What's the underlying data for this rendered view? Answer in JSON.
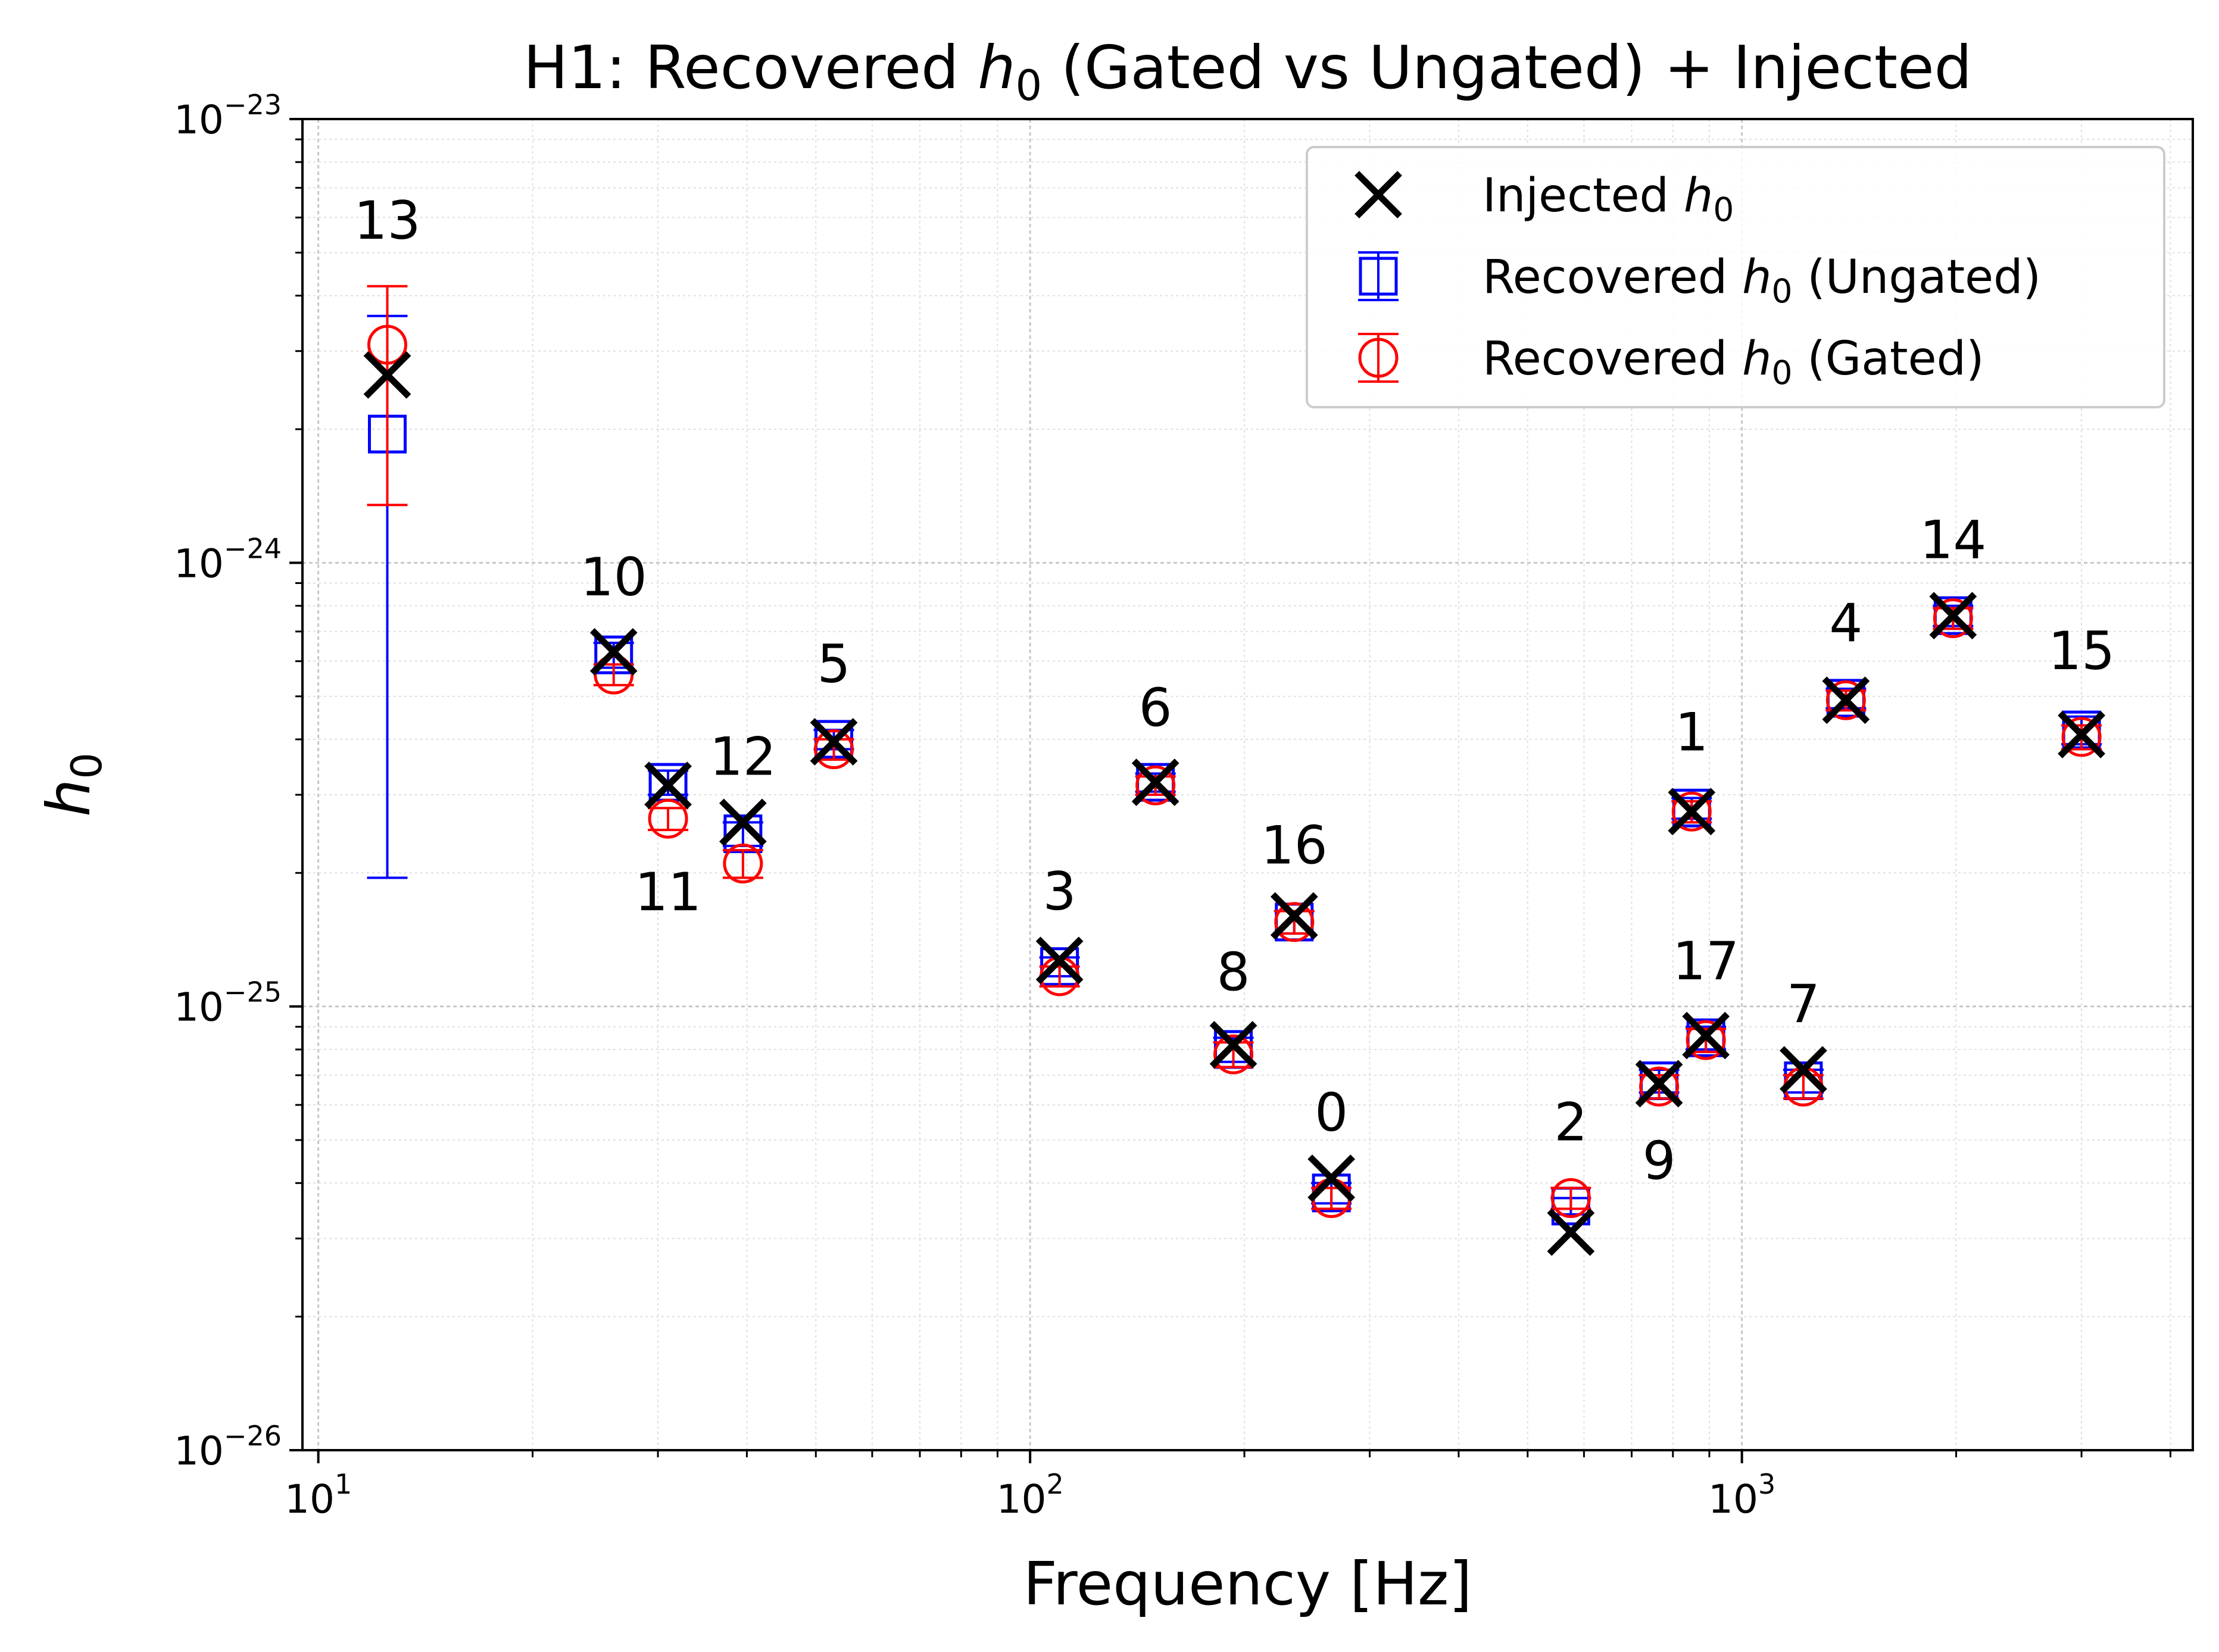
{
  "chart_data": {
    "type": "scatter",
    "title": "H1: Recovered h0 (Gated vs Ungated) + Injected",
    "title_parts": {
      "prefix": "H1: Recovered ",
      "sym": "h",
      "sub": "0",
      "suffix": " (Gated vs Ungated) + Injected"
    },
    "xlabel": "Frequency [Hz]",
    "ylabel": {
      "sym": "h",
      "sub": "0"
    },
    "xscale": "log",
    "yscale": "log",
    "xlim": [
      9.5,
      4300
    ],
    "ylim": [
      1e-26,
      1e-23
    ],
    "grid": true,
    "legend_position": "top-right",
    "x_ticks": [
      {
        "value": 10,
        "base": "10",
        "exp": "1"
      },
      {
        "value": 100,
        "base": "10",
        "exp": "2"
      },
      {
        "value": 1000,
        "base": "10",
        "exp": "3"
      }
    ],
    "y_ticks": [
      {
        "value": 1e-26,
        "base": "10",
        "exp": "−26"
      },
      {
        "value": 1e-25,
        "base": "10",
        "exp": "−25"
      },
      {
        "value": 1e-24,
        "base": "10",
        "exp": "−24"
      },
      {
        "value": 1e-23,
        "base": "10",
        "exp": "−23"
      }
    ],
    "legend": [
      {
        "key": "injected",
        "text_prefix": "Injected ",
        "sym": "h",
        "sub": "0",
        "text_suffix": ""
      },
      {
        "key": "ungated",
        "text_prefix": "Recovered ",
        "sym": "h",
        "sub": "0",
        "text_suffix": " (Ungated)"
      },
      {
        "key": "gated",
        "text_prefix": "Recovered ",
        "sym": "h",
        "sub": "0",
        "text_suffix": " (Gated)"
      }
    ],
    "colors": {
      "injected": "#000000",
      "ungated": "#0000ff",
      "gated": "#ff0000"
    },
    "points": [
      {
        "label": "0",
        "freq": 265,
        "injected": 4.1e-26,
        "ungated": 3.8e-26,
        "ungated_err": [
          3.6e-26,
          4e-26
        ],
        "gated": 3.7e-26,
        "gated_err": [
          3.5e-26,
          3.9e-26
        ],
        "label_side": "above"
      },
      {
        "label": "1",
        "freq": 850,
        "injected": 2.75e-25,
        "ungated": 2.8e-25,
        "ungated_err": [
          2.65e-25,
          2.95e-25
        ],
        "gated": 2.75e-25,
        "gated_err": [
          2.6e-25,
          2.9e-25
        ],
        "label_side": "above"
      },
      {
        "label": "2",
        "freq": 575,
        "injected": 3.1e-26,
        "ungated": 3.55e-26,
        "ungated_err": [
          3.4e-26,
          3.7e-26
        ],
        "gated": 3.7e-26,
        "gated_err": [
          3.5e-26,
          3.9e-26
        ],
        "label_side": "above"
      },
      {
        "label": "3",
        "freq": 110,
        "injected": 1.27e-25,
        "ungated": 1.23e-25,
        "ungated_err": [
          1.17e-25,
          1.29e-25
        ],
        "gated": 1.17e-25,
        "gated_err": [
          1.11e-25,
          1.23e-25
        ],
        "label_side": "above"
      },
      {
        "label": "4",
        "freq": 1400,
        "injected": 4.9e-25,
        "ungated": 4.95e-25,
        "ungated_err": [
          4.7e-25,
          5.2e-25
        ],
        "gated": 4.9e-25,
        "gated_err": [
          4.65e-25,
          5.15e-25
        ],
        "label_side": "above"
      },
      {
        "label": "5",
        "freq": 53,
        "injected": 3.95e-25,
        "ungated": 4e-25,
        "ungated_err": [
          3.8e-25,
          4.2e-25
        ],
        "gated": 3.8e-25,
        "gated_err": [
          3.6e-25,
          4e-25
        ],
        "label_side": "above"
      },
      {
        "label": "6",
        "freq": 150,
        "injected": 3.2e-25,
        "ungated": 3.2e-25,
        "ungated_err": [
          3.05e-25,
          3.35e-25
        ],
        "gated": 3.15e-25,
        "gated_err": [
          3e-25,
          3.3e-25
        ],
        "label_side": "above"
      },
      {
        "label": "7",
        "freq": 1220,
        "injected": 7.2e-26,
        "ungated": 6.8e-26,
        "ungated_err": [
          6.4e-26,
          7.2e-26
        ],
        "gated": 6.6e-26,
        "gated_err": [
          6.2e-26,
          7e-26
        ],
        "label_side": "above"
      },
      {
        "label": "8",
        "freq": 193,
        "injected": 8.2e-26,
        "ungated": 8e-26,
        "ungated_err": [
          7.5e-26,
          8.5e-26
        ],
        "gated": 7.8e-26,
        "gated_err": [
          7.3e-26,
          8.3e-26
        ],
        "label_side": "above"
      },
      {
        "label": "9",
        "freq": 765,
        "injected": 6.7e-26,
        "ungated": 6.8e-26,
        "ungated_err": [
          6.4e-26,
          7.2e-26
        ],
        "gated": 6.6e-26,
        "gated_err": [
          6.2e-26,
          7e-26
        ],
        "label_side": "below"
      },
      {
        "label": "10",
        "freq": 26,
        "injected": 6.3e-25,
        "ungated": 6.2e-25,
        "ungated_err": [
          5.8e-25,
          6.6e-25
        ],
        "gated": 5.6e-25,
        "gated_err": [
          5.3e-25,
          5.9e-25
        ],
        "label_side": "above"
      },
      {
        "label": "11",
        "freq": 31,
        "injected": 3.15e-25,
        "ungated": 3.2e-25,
        "ungated_err": [
          3e-25,
          3.4e-25
        ],
        "gated": 2.65e-25,
        "gated_err": [
          2.5e-25,
          2.8e-25
        ],
        "label_side": "below"
      },
      {
        "label": "12",
        "freq": 39.5,
        "injected": 2.6e-25,
        "ungated": 2.45e-25,
        "ungated_err": [
          2.3e-25,
          2.6e-25
        ],
        "gated": 2.1e-25,
        "gated_err": [
          1.95e-25,
          2.25e-25
        ],
        "label_side": "above"
      },
      {
        "label": "13",
        "freq": 12.5,
        "injected": 2.65e-24,
        "ungated": 1.95e-24,
        "ungated_err": [
          1.95e-25,
          3.6e-24
        ],
        "gated": 3.1e-24,
        "gated_err": [
          1.35e-24,
          4.2e-24
        ],
        "label_side": "above"
      },
      {
        "label": "14",
        "freq": 1980,
        "injected": 7.6e-25,
        "ungated": 7.6e-25,
        "ungated_err": [
          7.2e-25,
          8e-25
        ],
        "gated": 7.5e-25,
        "gated_err": [
          7.1e-25,
          7.9e-25
        ],
        "label_side": "above"
      },
      {
        "label": "15",
        "freq": 3000,
        "injected": 4.1e-25,
        "ungated": 4.2e-25,
        "ungated_err": [
          3.9e-25,
          4.5e-25
        ],
        "gated": 4.05e-25,
        "gated_err": [
          3.8e-25,
          4.3e-25
        ],
        "label_side": "above"
      },
      {
        "label": "16",
        "freq": 235,
        "injected": 1.6e-25,
        "ungated": 1.55e-25,
        "ungated_err": [
          1.46e-25,
          1.64e-25
        ],
        "gated": 1.55e-25,
        "gated_err": [
          1.46e-25,
          1.64e-25
        ],
        "label_side": "above"
      },
      {
        "label": "17",
        "freq": 890,
        "injected": 8.6e-26,
        "ungated": 8.5e-26,
        "ungated_err": [
          8e-26,
          9e-26
        ],
        "gated": 8.4e-26,
        "gated_err": [
          7.9e-26,
          8.9e-26
        ],
        "label_side": "above"
      }
    ]
  }
}
